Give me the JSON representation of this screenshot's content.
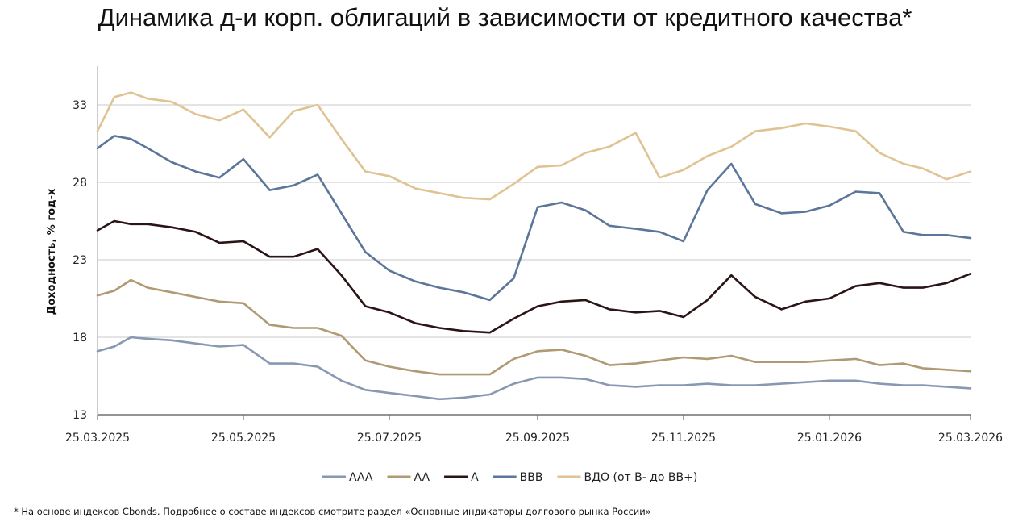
{
  "chart_data": {
    "type": "line",
    "title": "Динамика д-и корп. облигаций в зависимости от кредитного качества*",
    "ylabel": "Доходность, % год-х",
    "xlabel": "",
    "ylim": [
      13,
      35.5
    ],
    "yticks": [
      "13",
      "18",
      "23",
      "28",
      "33"
    ],
    "xticks": [
      "25.03.2025",
      "25.05.2025",
      "25.07.2025",
      "25.09.2025",
      "25.11.2025",
      "25.01.2026",
      "25.03.2026"
    ],
    "grid": "horizontal",
    "legend_position": "bottom",
    "x_points": [
      "25.03.2025",
      "01.04.2025",
      "08.04.2025",
      "15.04.2025",
      "25.04.2025",
      "05.05.2025",
      "15.05.2025",
      "25.05.2025",
      "05.06.2025",
      "15.06.2025",
      "25.06.2025",
      "05.07.2025",
      "15.07.2025",
      "25.07.2025",
      "05.08.2025",
      "15.08.2025",
      "25.08.2025",
      "05.09.2025",
      "15.09.2025",
      "25.09.2025",
      "05.10.2025",
      "15.10.2025",
      "25.10.2025",
      "05.11.2025",
      "15.11.2025",
      "25.11.2025",
      "05.12.2025",
      "15.12.2025",
      "25.12.2025",
      "05.01.2026",
      "15.01.2026",
      "25.01.2026",
      "05.02.2026",
      "15.02.2026",
      "25.02.2026",
      "05.03.2026",
      "15.03.2026",
      "25.03.2026"
    ],
    "series": [
      {
        "name": "AAA",
        "color": "#8898b3",
        "values": [
          17.1,
          17.4,
          18.0,
          17.9,
          17.8,
          17.6,
          17.4,
          17.5,
          16.3,
          16.3,
          16.1,
          15.2,
          14.6,
          14.4,
          14.2,
          14.0,
          14.1,
          14.3,
          15.0,
          15.4,
          15.4,
          15.3,
          14.9,
          14.8,
          14.9,
          14.9,
          15.0,
          14.9,
          14.9,
          15.0,
          15.1,
          15.2,
          15.2,
          15.0,
          14.9,
          14.9,
          14.8,
          14.7
        ]
      },
      {
        "name": "AA",
        "color": "#b09a74",
        "values": [
          20.7,
          21.0,
          21.7,
          21.2,
          20.9,
          20.6,
          20.3,
          20.2,
          18.8,
          18.6,
          18.6,
          18.1,
          16.5,
          16.1,
          15.8,
          15.6,
          15.6,
          15.6,
          16.6,
          17.1,
          17.2,
          16.8,
          16.2,
          16.3,
          16.5,
          16.7,
          16.6,
          16.8,
          16.4,
          16.4,
          16.4,
          16.5,
          16.6,
          16.2,
          16.3,
          16.0,
          15.9,
          15.8
        ]
      },
      {
        "name": "A",
        "color": "#2b1416",
        "values": [
          24.9,
          25.5,
          25.3,
          25.3,
          25.1,
          24.8,
          24.1,
          24.2,
          23.2,
          23.2,
          23.7,
          22.0,
          20.0,
          19.6,
          18.9,
          18.6,
          18.4,
          18.3,
          19.2,
          20.0,
          20.3,
          20.4,
          19.8,
          19.6,
          19.7,
          19.3,
          20.4,
          22.0,
          20.6,
          19.8,
          20.3,
          20.5,
          21.3,
          21.5,
          21.2,
          21.2,
          21.5,
          22.1
        ]
      },
      {
        "name": "BBB",
        "color": "#5c7699",
        "values": [
          30.2,
          31.0,
          30.8,
          30.2,
          29.3,
          28.7,
          28.3,
          29.5,
          27.5,
          27.8,
          28.5,
          26.0,
          23.5,
          22.3,
          21.6,
          21.2,
          20.9,
          20.4,
          21.8,
          26.4,
          26.7,
          26.2,
          25.2,
          25.0,
          24.8,
          24.2,
          27.5,
          29.2,
          26.6,
          26.0,
          26.1,
          26.5,
          27.4,
          27.3,
          24.8,
          24.6,
          24.6,
          24.4
        ]
      },
      {
        "name": "ВДО (от B- до BB+)",
        "color": "#e0c392",
        "values": [
          31.3,
          33.5,
          33.8,
          33.4,
          33.2,
          32.4,
          32.0,
          32.7,
          30.9,
          32.6,
          33.0,
          30.8,
          28.7,
          28.4,
          27.6,
          27.3,
          27.0,
          26.9,
          27.9,
          29.0,
          29.1,
          29.9,
          30.3,
          31.2,
          28.3,
          28.8,
          29.7,
          30.3,
          31.3,
          31.5,
          31.8,
          31.6,
          31.3,
          29.9,
          29.2,
          28.9,
          28.2,
          28.7
        ]
      }
    ]
  },
  "footnote": "* На основе индексов Cbonds. Подробнее о составе индексов смотрите раздел «Основные индикаторы долгового рынка России»"
}
